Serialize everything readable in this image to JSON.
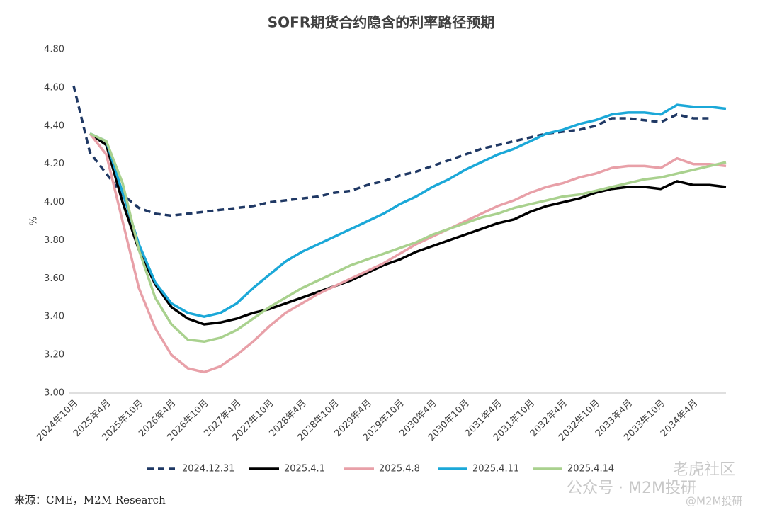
{
  "chart_data": {
    "type": "line",
    "title": "SOFR期货合约隐含的利率路径预期",
    "y_label": "%",
    "source": "来源：CME，M2M Research",
    "watermarks": [
      "老虎社区",
      "公众号 · M2M投研",
      "@M2M投研"
    ],
    "categories": [
      "2024年10月",
      null,
      "2025年4月",
      null,
      "2025年10月",
      null,
      "2026年4月",
      null,
      "2026年10月",
      null,
      "2027年4月",
      null,
      "2027年10月",
      null,
      "2028年4月",
      null,
      "2028年10月",
      null,
      "2029年4月",
      null,
      "2029年10月",
      null,
      "2030年4月",
      null,
      "2030年10月",
      null,
      "2031年4月",
      null,
      "2031年10月",
      null,
      "2032年4月",
      null,
      "2032年10月",
      null,
      "2033年4月",
      null,
      "2033年10月",
      null,
      "2034年4月",
      null,
      null
    ],
    "ylim": [
      3.0,
      4.8
    ],
    "yticks": [
      {
        "value": 3.0,
        "label": "3.00"
      },
      {
        "value": 3.2,
        "label": "3.20"
      },
      {
        "value": 3.4,
        "label": "3.40"
      },
      {
        "value": 3.6,
        "label": "3.60"
      },
      {
        "value": 3.8,
        "label": "3.80"
      },
      {
        "value": 4.0,
        "label": "4.00"
      },
      {
        "value": 4.2,
        "label": "4.20"
      },
      {
        "value": 4.4,
        "label": "4.40"
      },
      {
        "value": 4.6,
        "label": "4.60"
      },
      {
        "value": 4.8,
        "label": "4.80"
      }
    ],
    "grid": false,
    "legend": "bottom",
    "series": [
      {
        "name": "2024.12.31",
        "color": "#1f3864",
        "style": "dashed",
        "values": [
          4.61,
          4.26,
          4.15,
          4.04,
          3.97,
          3.94,
          3.93,
          3.94,
          3.95,
          3.96,
          3.97,
          3.98,
          4.0,
          4.01,
          4.02,
          4.03,
          4.05,
          4.06,
          4.09,
          4.11,
          4.14,
          4.16,
          4.19,
          4.22,
          4.25,
          4.28,
          4.3,
          4.32,
          4.34,
          4.36,
          4.37,
          4.38,
          4.4,
          4.44,
          4.44,
          4.43,
          4.42,
          4.46,
          4.44,
          4.44,
          null
        ]
      },
      {
        "name": "2025.4.1",
        "color": "#000000",
        "style": "solid",
        "values": [
          null,
          4.36,
          4.3,
          4.0,
          3.75,
          3.57,
          3.45,
          3.39,
          3.36,
          3.37,
          3.39,
          3.42,
          3.44,
          3.47,
          3.5,
          3.53,
          3.56,
          3.59,
          3.63,
          3.67,
          3.7,
          3.74,
          3.77,
          3.8,
          3.83,
          3.86,
          3.89,
          3.91,
          3.95,
          3.98,
          4.0,
          4.02,
          4.05,
          4.07,
          4.08,
          4.08,
          4.07,
          4.11,
          4.09,
          4.09,
          4.08
        ]
      },
      {
        "name": "2025.4.8",
        "color": "#e8a0a8",
        "style": "solid",
        "values": [
          null,
          4.36,
          4.25,
          3.9,
          3.55,
          3.34,
          3.2,
          3.13,
          3.11,
          3.14,
          3.2,
          3.27,
          3.35,
          3.42,
          3.47,
          3.52,
          3.56,
          3.6,
          3.64,
          3.68,
          3.73,
          3.78,
          3.82,
          3.86,
          3.9,
          3.94,
          3.98,
          4.01,
          4.05,
          4.08,
          4.1,
          4.13,
          4.15,
          4.18,
          4.19,
          4.19,
          4.18,
          4.23,
          4.2,
          4.2,
          4.19
        ]
      },
      {
        "name": "2025.4.11",
        "color": "#1ba8d8",
        "style": "solid",
        "values": [
          null,
          4.36,
          4.32,
          4.05,
          3.78,
          3.58,
          3.47,
          3.42,
          3.4,
          3.42,
          3.47,
          3.55,
          3.62,
          3.69,
          3.74,
          3.78,
          3.82,
          3.86,
          3.9,
          3.94,
          3.99,
          4.03,
          4.08,
          4.12,
          4.17,
          4.21,
          4.25,
          4.28,
          4.32,
          4.36,
          4.38,
          4.41,
          4.43,
          4.46,
          4.47,
          4.47,
          4.46,
          4.51,
          4.5,
          4.5,
          4.49
        ]
      },
      {
        "name": "2025.4.14",
        "color": "#a9d18e",
        "style": "solid",
        "values": [
          null,
          4.36,
          4.32,
          4.1,
          3.75,
          3.5,
          3.36,
          3.28,
          3.27,
          3.29,
          3.33,
          3.39,
          3.45,
          3.5,
          3.55,
          3.59,
          3.63,
          3.67,
          3.7,
          3.73,
          3.76,
          3.79,
          3.83,
          3.86,
          3.89,
          3.92,
          3.94,
          3.97,
          3.99,
          4.01,
          4.03,
          4.04,
          4.06,
          4.08,
          4.1,
          4.12,
          4.13,
          4.15,
          4.17,
          4.19,
          4.21
        ]
      }
    ]
  }
}
